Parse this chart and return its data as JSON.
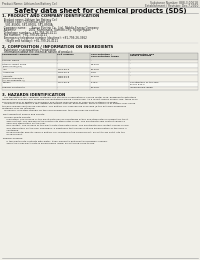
{
  "bg_color": "#f0efe8",
  "header_left": "Product Name: Lithium Ion Battery Cell",
  "header_right_l1": "Substance Number: 888-3-00618",
  "header_right_l2": "Establishment / Revision: Dec.7.2010",
  "main_title": "Safety data sheet for chemical products (SDS)",
  "s1_title": "1. PRODUCT AND COMPANY IDENTIFICATION",
  "s1_lines": [
    "  Product name: Lithium Ion Battery Cell",
    "  Product code: Cylindrical-type cell",
    "    581-8500U, 581-8500L, 581-8500A",
    "  Company name:      Sanyo Electric Co., Ltd., Mobile Energy Company",
    "  Address:               2001  Kamionaka, Sumoto-City, Hyogo, Japan",
    "  Telephone number:  +81-799-26-4111",
    "  Fax number:  +81-799-26-4121",
    "  Emergency telephone number (daytime): +81-799-26-3662",
    "    (Night and holiday): +81-799-26-4121"
  ],
  "s2_title": "2. COMPOSITION / INFORMATION ON INGREDIENTS",
  "s2_prep": "  Substance or preparation: Preparation",
  "s2_info": "  Information about the chemical nature of product:",
  "th1": "Component chemical name",
  "th2": "CAS number",
  "th3": "Concentration /\nConcentration range",
  "th4": "Classification and\nhazard labeling",
  "rows": [
    [
      "Several Name",
      "-",
      "-",
      "-"
    ],
    [
      "Lithium cobalt oxide\n(LiMn-Co-Ni)(Ox)",
      "-",
      "30-60%",
      "-"
    ],
    [
      "Iron",
      "7439-89-6",
      "15-20%",
      "-"
    ],
    [
      "Aluminum",
      "7429-90-5",
      "2-8%",
      "-"
    ],
    [
      "Graphite\n(Mixd-in graphite-I\n(All-Mn graphite-I))",
      "7782-42-5\n7782-44-2",
      "10-25%",
      "-"
    ],
    [
      "Copper",
      "7440-50-8",
      "5-15%",
      "Sensitization of the skin\ngroup R43,2"
    ],
    [
      "Organic electrolyte",
      "-",
      "10-20%",
      "Inflammable liquid"
    ]
  ],
  "s3_title": "3. HAZARDS IDENTIFICATION",
  "s3_lines": [
    "   For the battery cell, chemical materials are stored in a hermetically-sealed metal case, designed to withstand",
    "temperature changes and pressure-concentrations during normal use. As a result, during normal use, there is no",
    "physical danger of ignition or explosion and (there is/no danger of hazardous materials leakage.",
    "   However, if exposed to a fire, added mechanical shocks, decompress, when electrolyte of battery may cause",
    "the gas release vent/can be operated. The battery cell case will be breached (if the extreme hazardous",
    "materials may be released.",
    "   Moreover, if heated strongly by the surrounding fire, toxic gas may be emitted.",
    "",
    " Most important hazard and effects:",
    "   Human health effects:",
    "      Inhalation: The release of the electrolyte has an anesthesia action and stimulates in respiratory tract.",
    "      Skin contact: The release of the electrolyte stimulates a skin. The electrolyte skin contact causes a",
    "      sore and stimulation on the skin.",
    "      Eye contact: The release of the electrolyte stimulates eyes. The electrolyte eye contact causes a sore",
    "      and stimulation on the eye. Especially, a substance that causes a strong inflammation of the eyes is",
    "      contained.",
    "      Environmental effects: Since a battery cell remains in the environment, do not throw out it into the",
    "      environment.",
    "",
    " Specific hazards:",
    "      If the electrolyte contacts with water, it will generate detrimental hydrogen fluoride.",
    "      Since the solid electrolyte is inflammable liquid, do not bring close to fire."
  ]
}
